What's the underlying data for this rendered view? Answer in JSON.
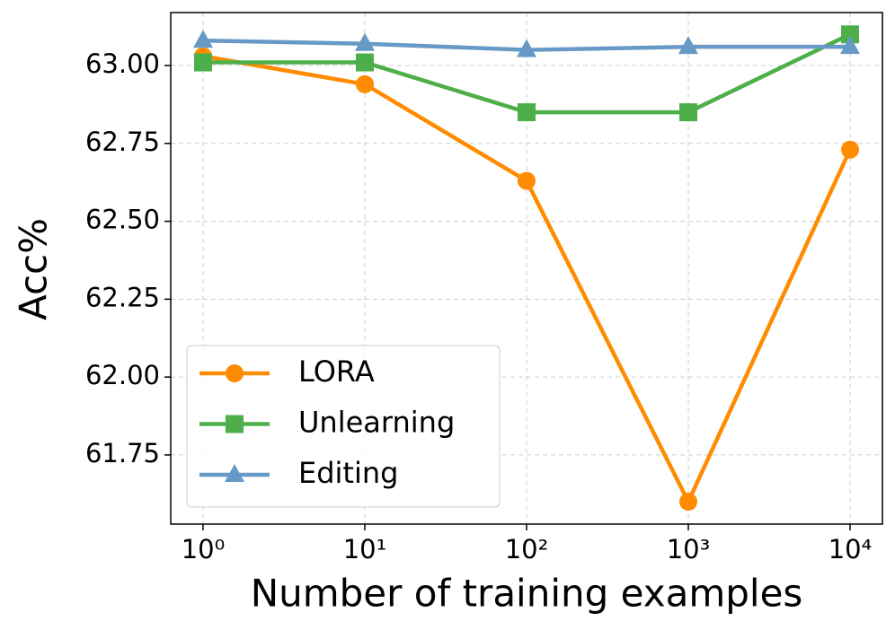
{
  "chart_data": {
    "type": "line",
    "xlabel": "Number of training examples",
    "ylabel": "Acc%",
    "x": [
      1,
      10,
      100,
      1000,
      10000
    ],
    "xscale": "log",
    "xlim": [
      0.631,
      15849
    ],
    "ylim": [
      61.528,
      63.17
    ],
    "xticks": [
      {
        "value": 1,
        "label": "10⁰"
      },
      {
        "value": 10,
        "label": "10¹"
      },
      {
        "value": 100,
        "label": "10²"
      },
      {
        "value": 1000,
        "label": "10³"
      },
      {
        "value": 10000,
        "label": "10⁴"
      }
    ],
    "yticks": [
      {
        "value": 61.75,
        "label": "61.75"
      },
      {
        "value": 62,
        "label": "62.00"
      },
      {
        "value": 62.25,
        "label": "62.25"
      },
      {
        "value": 62.5,
        "label": "62.50"
      },
      {
        "value": 62.75,
        "label": "62.75"
      },
      {
        "value": 63,
        "label": "63.00"
      }
    ],
    "grid": true,
    "legend": "lower left",
    "series": [
      {
        "name": "LORA",
        "color": "#ff8c00",
        "marker": "circle",
        "values": [
          63.03,
          62.94,
          62.63,
          61.6,
          62.73
        ]
      },
      {
        "name": "Unlearning",
        "color": "#4daf4a",
        "marker": "square",
        "values": [
          63.01,
          63.01,
          62.85,
          62.85,
          63.1
        ]
      },
      {
        "name": "Editing",
        "color": "#6699c6",
        "marker": "triangle",
        "values": [
          63.08,
          63.07,
          63.05,
          63.06,
          63.06
        ]
      }
    ]
  }
}
